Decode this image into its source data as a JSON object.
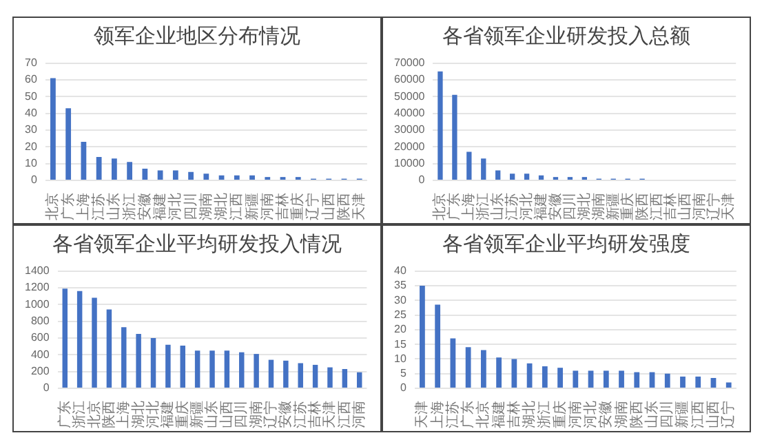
{
  "chart_data": [
    {
      "type": "bar",
      "title": "领军企业地区分布情况",
      "categories": [
        "北京",
        "广东",
        "上海",
        "江苏",
        "山东",
        "浙江",
        "安徽",
        "福建",
        "河北",
        "四川",
        "湖南",
        "湖北",
        "江西",
        "新疆",
        "河南",
        "吉林",
        "重庆",
        "辽宁",
        "山西",
        "陕西",
        "天津"
      ],
      "values": [
        61,
        43,
        23,
        14,
        13,
        11,
        7,
        6,
        6,
        5,
        4,
        3,
        3,
        3,
        2,
        2,
        2,
        1,
        1,
        1,
        1
      ],
      "color": "#4472c4",
      "ylim": [
        0,
        70
      ],
      "yticks": [
        0,
        10,
        20,
        30,
        40,
        50,
        60,
        70
      ],
      "grid": "y"
    },
    {
      "type": "bar",
      "title": "各省领军企业研发投入总额",
      "categories": [
        "北京",
        "广东",
        "上海",
        "浙江",
        "山东",
        "江苏",
        "河北",
        "福建",
        "安徽",
        "四川",
        "湖北",
        "湖南",
        "新疆",
        "重庆",
        "陕西",
        "江西",
        "吉林",
        "山西",
        "河南",
        "辽宁",
        "天津"
      ],
      "values": [
        65000,
        51000,
        17000,
        13000,
        6000,
        4000,
        4000,
        3000,
        2000,
        2000,
        2000,
        1000,
        1000,
        1000,
        1000,
        null,
        null,
        null,
        null,
        null,
        null
      ],
      "color": "#4472c4",
      "ylim": [
        0,
        70000
      ],
      "yticks": [
        0,
        10000,
        20000,
        30000,
        40000,
        50000,
        60000,
        70000
      ],
      "grid": "y"
    },
    {
      "type": "bar",
      "title": "各省领军企业平均研发投入情况",
      "categories": [
        "广东",
        "浙江",
        "北京",
        "陕西",
        "上海",
        "湖北",
        "河北",
        "福建",
        "重庆",
        "新疆",
        "山东",
        "山西",
        "四川",
        "湖南",
        "辽宁",
        "安徽",
        "江苏",
        "吉林",
        "天津",
        "江西",
        "河南"
      ],
      "values": [
        1190,
        1160,
        1080,
        940,
        730,
        650,
        600,
        520,
        510,
        450,
        450,
        450,
        430,
        410,
        340,
        330,
        300,
        280,
        250,
        230,
        190
      ],
      "color": "#4472c4",
      "ylim": [
        0,
        1400
      ],
      "yticks": [
        0,
        200,
        400,
        600,
        800,
        1000,
        1200,
        1400
      ],
      "grid": "y"
    },
    {
      "type": "bar",
      "title": "各省领军企业平均研发强度",
      "categories": [
        "天津",
        "上海",
        "江苏",
        "广东",
        "北京",
        "福建",
        "吉林",
        "湖北",
        "浙江",
        "重庆",
        "河南",
        "河北",
        "安徽",
        "湖南",
        "陕西",
        "山东",
        "四川",
        "新疆",
        "江西",
        "山西",
        "辽宁"
      ],
      "values": [
        35,
        28.5,
        17,
        14,
        13,
        10.5,
        10,
        8.5,
        7.5,
        7,
        6,
        6,
        6,
        6,
        5.5,
        5.5,
        5,
        4,
        4,
        3.5,
        2
      ],
      "color": "#4472c4",
      "ylim": [
        0,
        40
      ],
      "yticks": [
        0,
        5,
        10,
        15,
        20,
        25,
        30,
        35,
        40
      ],
      "grid": "y"
    }
  ]
}
